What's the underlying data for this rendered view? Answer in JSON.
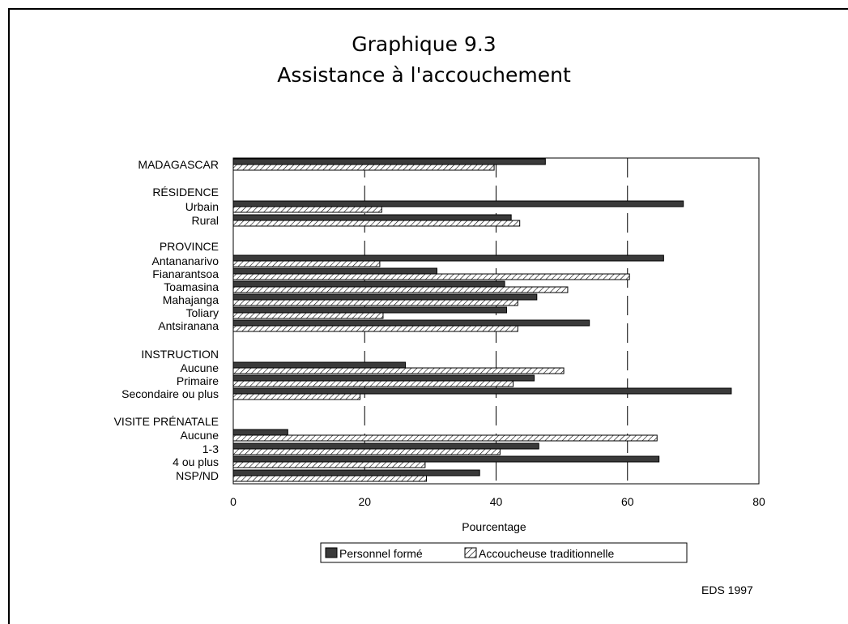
{
  "page": {
    "title_line1": "Graphique 9.3",
    "title_line2": "Assistance à l'accouchement",
    "source": "EDS 1997"
  },
  "colors": {
    "personnel_fill": "#3a3a3a",
    "traditionnelle_fill": "#ffffff",
    "line": "#000000"
  },
  "chart_data": {
    "type": "bar",
    "orientation": "horizontal",
    "title": "Graphique 9.3 Assistance à l'accouchement",
    "xlabel": "Pourcentage",
    "ylabel": "",
    "xlim": [
      0,
      80
    ],
    "xticks": [
      0,
      20,
      40,
      60,
      80
    ],
    "grid": "vertical dashed lines at 20, 40, 60",
    "legend_position": "bottom",
    "categories": [
      "MADAGASCAR",
      "RÉSIDENCE",
      "Urbain",
      "Rural",
      "PROVINCE",
      "Antananarivo",
      "Fianarantsoa",
      "Toamasina",
      "Mahajanga",
      "Toliary",
      "Antsiranana",
      "INSTRUCTION",
      "Aucune",
      "Primaire",
      "Secondaire ou plus",
      "VISITE PRÉNATALE",
      "Aucune",
      "1-3",
      "4 ou plus",
      "NSP/ND"
    ],
    "series": [
      {
        "name": "Personnel formé",
        "pattern": "solid-dark",
        "values": [
          47.5,
          null,
          68.5,
          42.3,
          null,
          65.5,
          31,
          41.3,
          46.2,
          41.6,
          54.2,
          null,
          26.2,
          45.8,
          75.8,
          null,
          8.3,
          46.5,
          64.8,
          37.5
        ]
      },
      {
        "name": "Accoucheuse traditionnelle",
        "pattern": "hatched",
        "values": [
          39.7,
          null,
          22.6,
          43.6,
          null,
          22.3,
          60.3,
          50.9,
          43.3,
          22.8,
          43.3,
          null,
          50.3,
          42.6,
          19.3,
          null,
          64.5,
          40.6,
          29.2,
          29.4
        ]
      }
    ]
  }
}
